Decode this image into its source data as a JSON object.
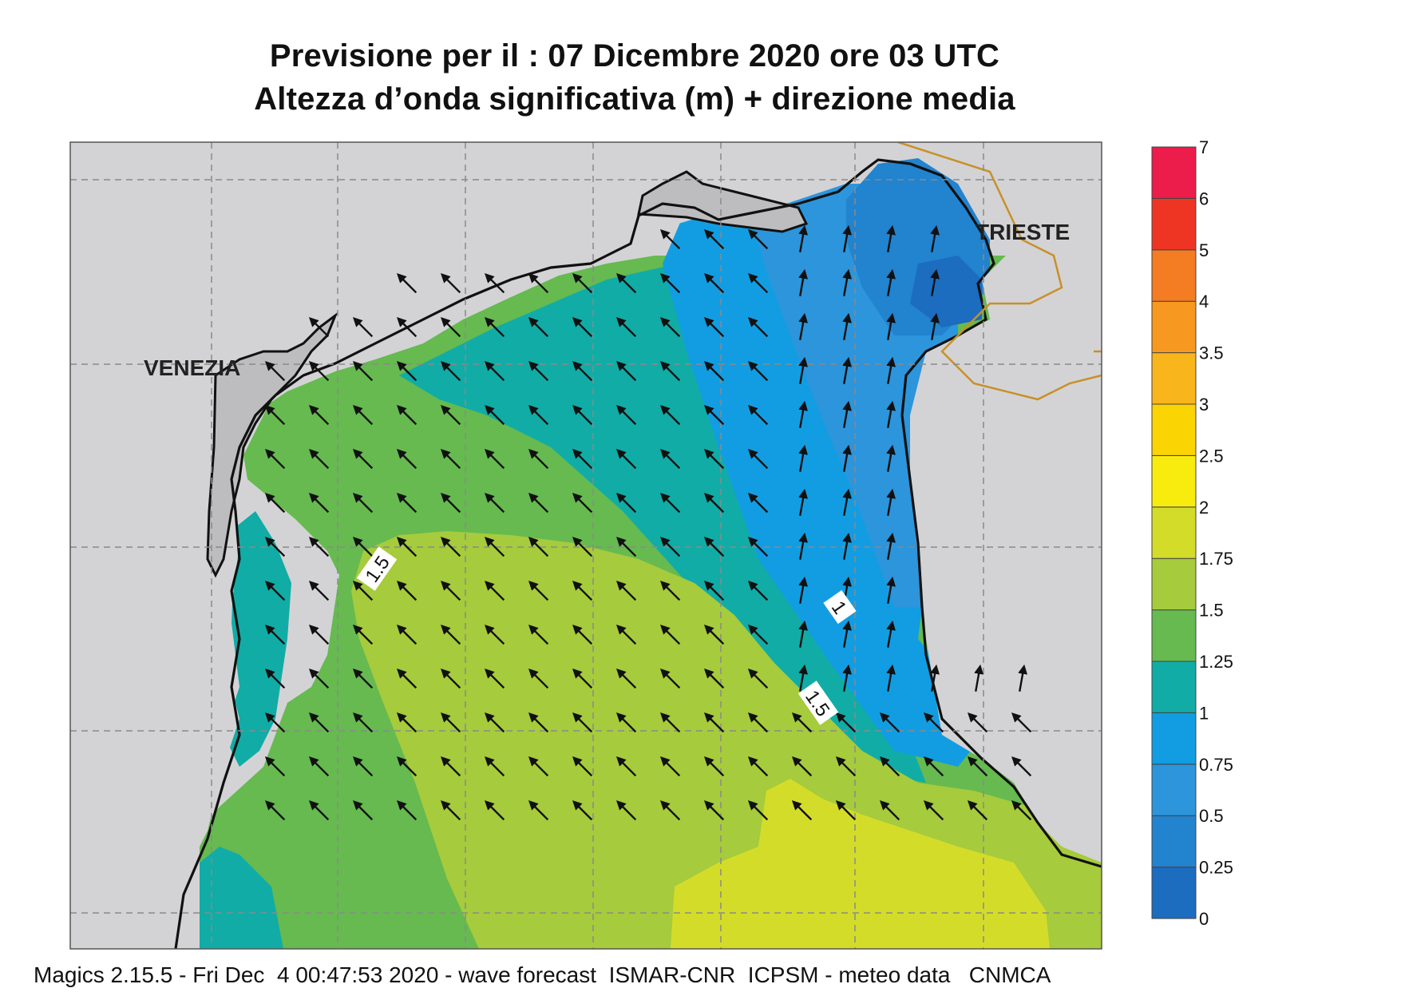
{
  "title": {
    "line1": "Previsione per il  :  07 Dicembre  2020   ore 03 UTC",
    "line2": "Altezza d’onda significativa (m) + direzione media"
  },
  "places": {
    "venezia": "VENEZIA",
    "trieste": "TRIESTE"
  },
  "contour_labels": [
    "1.5",
    "1",
    "1.5"
  ],
  "legend": {
    "levels": [
      "0",
      "0.25",
      "0.5",
      "0.75",
      "1",
      "1.25",
      "1.5",
      "1.75",
      "2",
      "2.5",
      "3",
      "3.5",
      "4",
      "5",
      "6",
      "7"
    ],
    "colors": [
      "#1c6cc0",
      "#2283cf",
      "#2c95dc",
      "#129de2",
      "#11aca6",
      "#66ba50",
      "#a6cb3c",
      "#d4dc2a",
      "#f8ec0e",
      "#fad403",
      "#f9b51c",
      "#f79820",
      "#f47c22",
      "#ee3524",
      "#ec1c4b"
    ]
  },
  "wave_direction": "mean direction arrows pointing north-west (toward the coast)",
  "footer": "Magics 2.15.5 - Fri Dec  4 00:47:53 2020 - wave forecast  ISMAR-CNR  ICPSM - meteo data   CNMCA"
}
